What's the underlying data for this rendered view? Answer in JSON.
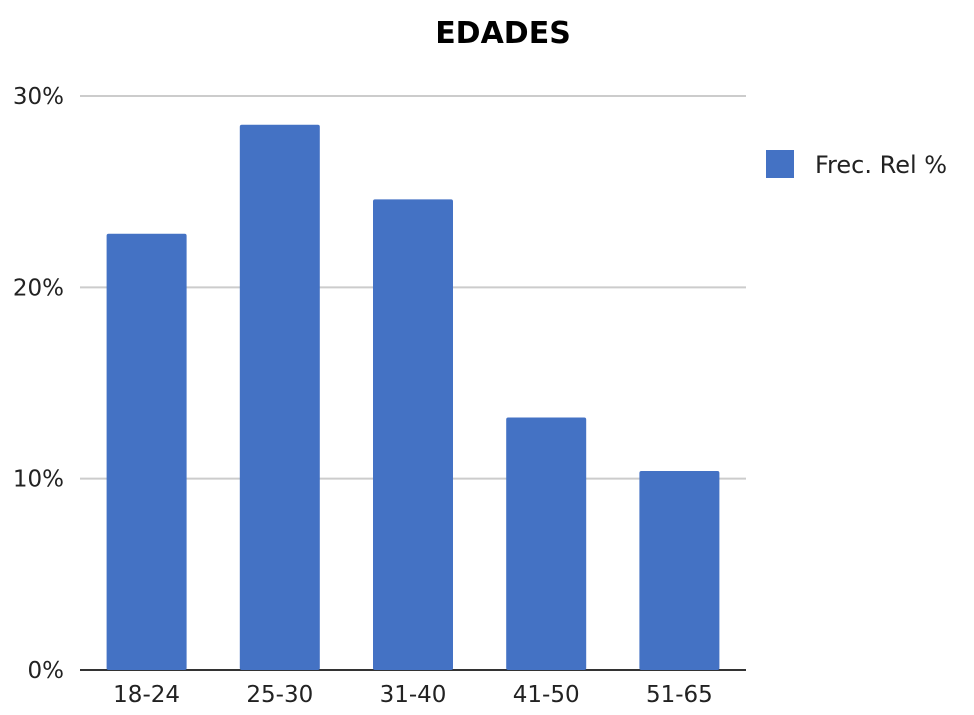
{
  "chart_data": {
    "type": "bar",
    "title": "EDADES",
    "categories": [
      "18-24",
      "25-30",
      "31-40",
      "41-50",
      "51-65"
    ],
    "series": [
      {
        "name": "Frec. Rel %",
        "values": [
          22.8,
          28.5,
          24.6,
          13.2,
          10.4
        ]
      }
    ],
    "ylim": [
      0,
      30
    ],
    "yticks": [
      0,
      10,
      20,
      30
    ],
    "ytick_labels": [
      "0%",
      "10%",
      "20%",
      "30%"
    ],
    "xlabel": "",
    "ylabel": "",
    "grid": true,
    "legend_position": "right",
    "colors": {
      "bar": "#4472C4"
    }
  }
}
